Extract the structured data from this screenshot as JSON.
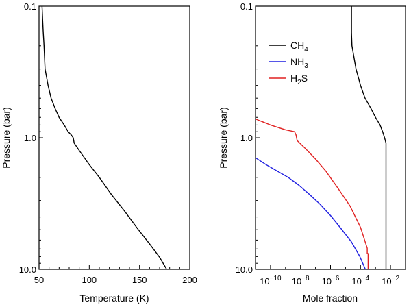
{
  "chart_data": [
    {
      "type": "line",
      "xlabel": "Temperature (K)",
      "ylabel": "Pressure (bar)",
      "xlim": [
        50,
        200
      ],
      "ylim": [
        0.1,
        10.0
      ],
      "y_scale": "log",
      "y_inverted": true,
      "x_ticks": [
        50,
        100,
        150,
        200
      ],
      "x_tick_labels": [
        "50",
        "100",
        "150",
        "200"
      ],
      "y_ticks": [
        0.1,
        1.0,
        10.0
      ],
      "y_tick_labels": [
        "0.1",
        "1.0",
        "10.0"
      ],
      "series": [
        {
          "color": "#000000",
          "x": [
            53,
            54,
            55,
            56,
            59,
            62,
            66,
            70,
            75,
            79,
            82,
            84,
            85,
            90,
            100,
            110,
            122,
            135,
            148,
            160,
            170,
            177
          ],
          "y": [
            0.1,
            0.15,
            0.2,
            0.3,
            0.4,
            0.5,
            0.6,
            0.7,
            0.8,
            0.9,
            0.95,
            1.0,
            1.1,
            1.25,
            1.6,
            2.0,
            2.7,
            3.6,
            4.9,
            6.4,
            8.1,
            10.0
          ]
        }
      ]
    },
    {
      "type": "line",
      "xlabel": "Mole fraction",
      "ylabel": "Pressure (bar)",
      "x_scale": "log",
      "xlim": [
        1e-11,
        0.1
      ],
      "ylim": [
        0.1,
        10.0
      ],
      "y_scale": "log",
      "y_inverted": true,
      "x_tick_labels": [
        {
          "base": "10",
          "exp": "−10",
          "value": 1e-10
        },
        {
          "base": "10",
          "exp": "−8",
          "value": 1e-08
        },
        {
          "base": "10",
          "exp": "−6",
          "value": 1e-06
        },
        {
          "base": "10",
          "exp": "−4",
          "value": 0.0001
        },
        {
          "base": "10",
          "exp": "−2",
          "value": 0.01
        }
      ],
      "y_ticks": [
        0.1,
        1.0,
        10.0
      ],
      "y_tick_labels": [
        "0.1",
        "1.0",
        "10.0"
      ],
      "legend_position": "top-left",
      "series": [
        {
          "legend_main": "CH",
          "legend_sub": "4",
          "color": "#000000",
          "x": [
            2.5e-05,
            2.5e-05,
            2.7e-05,
            5e-05,
            0.0001,
            0.0002,
            0.0005,
            0.001,
            0.002,
            0.003,
            0.004,
            0.005,
            0.005
          ],
          "y": [
            0.1,
            0.16,
            0.2,
            0.3,
            0.4,
            0.5,
            0.6,
            0.7,
            0.8,
            0.9,
            1.0,
            1.1,
            10.0
          ]
        },
        {
          "legend_main": "NH",
          "legend_sub": "3",
          "color": "#1f1fe0",
          "x": [
            1e-11,
            5e-11,
            3e-10,
            1.5e-09,
            8e-09,
            4e-08,
            2e-07,
            1e-06,
            5e-06,
            2.5e-05,
            9e-05,
            0.00021
          ],
          "y": [
            1.42,
            1.6,
            1.8,
            2.0,
            2.3,
            2.7,
            3.2,
            3.9,
            4.9,
            6.2,
            8.0,
            10.0
          ]
        },
        {
          "legend_main": "H",
          "legend_sub": "2",
          "legend_tail": "S",
          "color": "#e02020",
          "x": [
            1e-11,
            1e-10,
            1e-09,
            4e-09,
            5e-09,
            6e-09,
            2e-08,
            1e-07,
            5e-07,
            3e-06,
            2e-05,
            0.0001,
            0.00028,
            0.00028,
            0.00032,
            0.00032
          ],
          "y": [
            0.72,
            0.8,
            0.87,
            0.9,
            0.95,
            1.05,
            1.2,
            1.45,
            1.8,
            2.4,
            3.3,
            4.8,
            6.9,
            7.6,
            7.6,
            10.0
          ]
        }
      ]
    }
  ]
}
